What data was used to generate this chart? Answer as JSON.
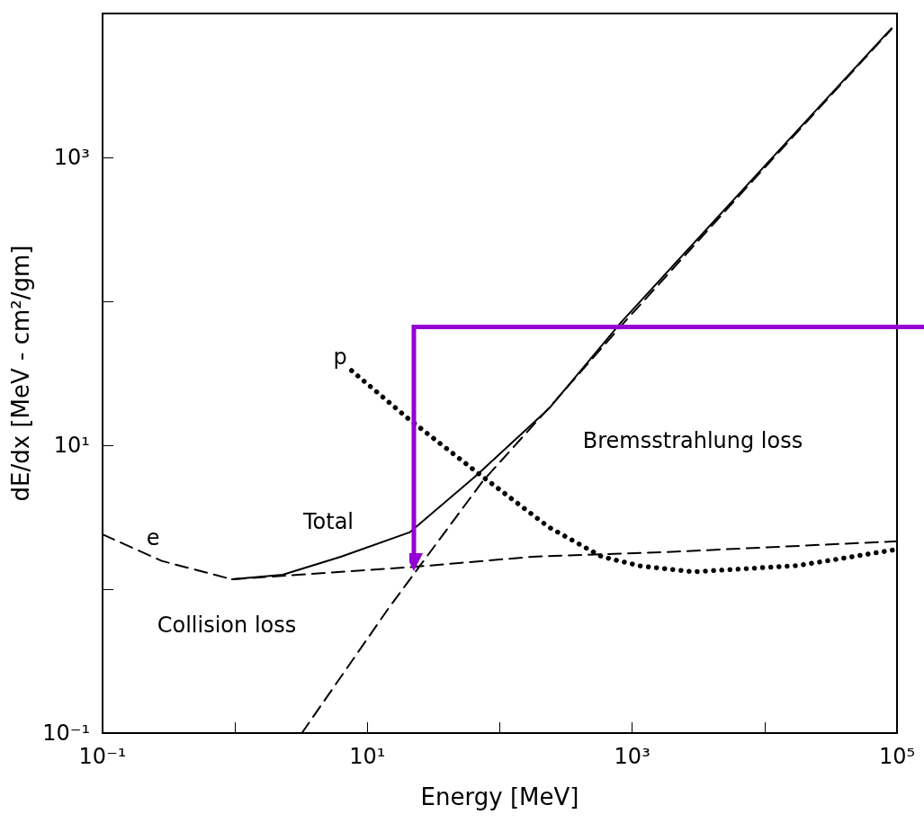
{
  "chart_data": {
    "type": "line",
    "xlabel": "Energy [MeV]",
    "ylabel": "dE/dx [MeV - cm²/gm]",
    "log": "xy",
    "grid": false,
    "marker": "none",
    "xlim": [
      0.1,
      100000
    ],
    "ylim": [
      0.1,
      10000
    ],
    "xticks": [
      {
        "value": 0.1,
        "label": "10⁻¹"
      },
      {
        "value": 1,
        "label": null
      },
      {
        "value": 10,
        "label": "10¹"
      },
      {
        "value": 100,
        "label": null
      },
      {
        "value": 1000,
        "label": "10³"
      },
      {
        "value": 10000,
        "label": null
      },
      {
        "value": 100000,
        "label": "10⁵"
      }
    ],
    "yticks": [
      {
        "value": 0.1,
        "label": "10⁻¹"
      },
      {
        "value": 1,
        "label": null
      },
      {
        "value": 10,
        "label": "10¹"
      },
      {
        "value": 100,
        "label": null
      },
      {
        "value": 1000,
        "label": "10³"
      },
      {
        "value": 10000,
        "label": null
      }
    ],
    "series": [
      {
        "color": "#000000",
        "line_style": "dashed",
        "x": [
          0.1,
          0.28,
          0.95,
          21,
          178,
          1800,
          100000
        ],
        "values": [
          2.4,
          1.57,
          1.17,
          1.42,
          1.68,
          1.81,
          2.15
        ]
      },
      {
        "color": "#000000",
        "line_style": "solid",
        "x": [
          0.95,
          2.29,
          6.3,
          21,
          67,
          234,
          830,
          8500,
          91000
        ],
        "values": [
          1.17,
          1.26,
          1.68,
          2.49,
          6.2,
          17.9,
          72,
          740,
          7900
        ]
      },
      {
        "color": "#000000",
        "line_style": "dashed",
        "x": [
          3.2,
          14.5,
          74,
          258,
          830,
          8500,
          91000
        ],
        "values": [
          0.1,
          0.74,
          5.6,
          20,
          68,
          720,
          7800
        ]
      },
      {
        "color": "#000000",
        "line_style": "dotted",
        "x": [
          7.6,
          20,
          67,
          234,
          590,
          1150,
          2900,
          18000,
          100000
        ],
        "values": [
          33,
          15.5,
          6.5,
          2.7,
          1.68,
          1.45,
          1.32,
          1.46,
          1.89
        ]
      }
    ],
    "annotations": [
      "e",
      "p",
      "Total",
      "Collision loss",
      "Bremsstrahlung loss"
    ]
  }
}
